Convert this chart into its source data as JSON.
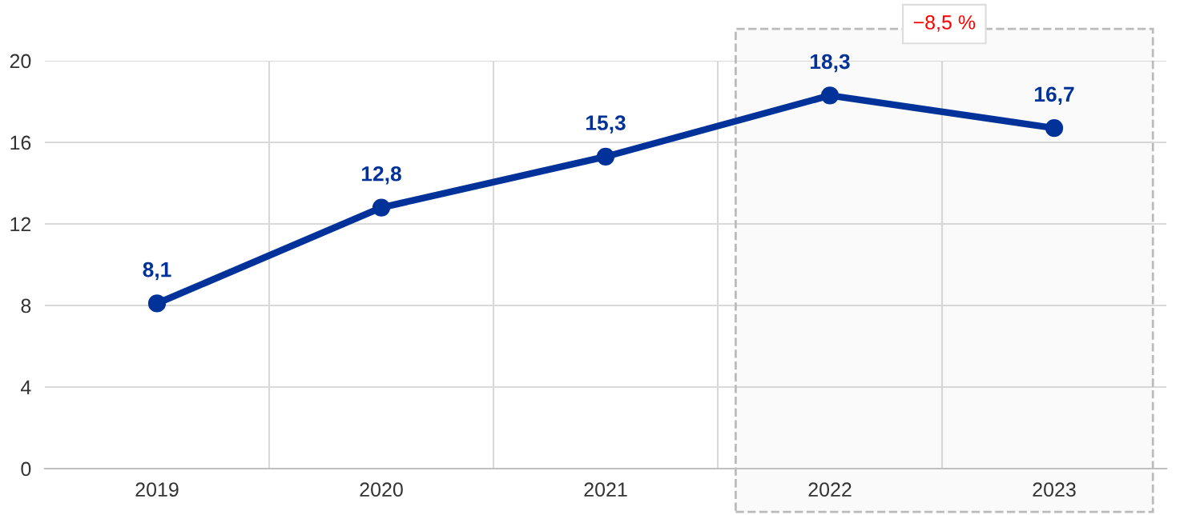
{
  "chart_data": {
    "type": "line",
    "categories": [
      "2019",
      "2020",
      "2021",
      "2022",
      "2023"
    ],
    "series": [
      {
        "color": "#003299",
        "values": [
          8.1,
          12.8,
          15.3,
          18.3,
          16.7
        ],
        "value_labels": [
          "8,1",
          "12,8",
          "15,3",
          "18,3",
          "16,7"
        ]
      }
    ],
    "ylim": [
      0,
      20
    ],
    "yticks": [
      0,
      4,
      8,
      12,
      16,
      20
    ],
    "grid": true,
    "marker": "circle",
    "line_style": "solid",
    "bands": [
      {
        "axis": "x",
        "from": "2022",
        "to": "2023",
        "label": "−8,5 %",
        "color": "#bbbbbb"
      }
    ]
  }
}
